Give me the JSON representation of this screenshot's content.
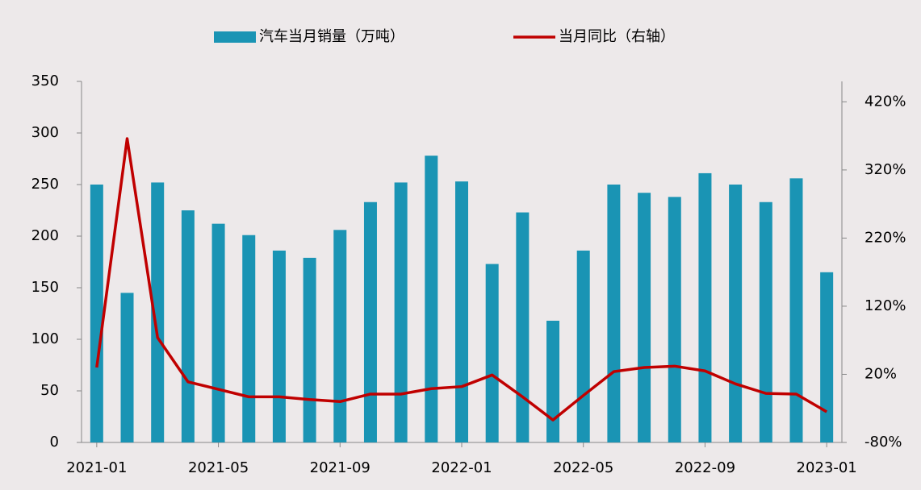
{
  "chart_data": {
    "type": "bar_line",
    "categories": [
      "2021-01",
      null,
      null,
      null,
      "2021-05",
      null,
      null,
      null,
      "2021-09",
      null,
      null,
      null,
      "2022-01",
      null,
      null,
      null,
      "2022-05",
      null,
      null,
      null,
      "2022-09",
      null,
      null,
      null,
      "2023-01"
    ],
    "series": [
      {
        "name": "汽车当月销量（万吨）",
        "type": "bar",
        "color": "#1a94b4",
        "values": [
          250,
          145,
          252,
          225,
          212,
          201,
          186,
          179,
          206,
          233,
          252,
          278,
          253,
          173,
          223,
          118,
          186,
          250,
          242,
          238,
          261,
          250,
          233,
          256,
          165
        ]
      },
      {
        "name": "当月同比（右轴）",
        "type": "line",
        "axis": "y2",
        "color": "#c00000",
        "values": [
          30,
          366,
          74,
          9,
          -2,
          -13,
          -13,
          -17,
          -20,
          -9,
          -9,
          -1,
          2,
          19,
          -13,
          -47,
          -11,
          24,
          30,
          32,
          25,
          6,
          -8,
          -9,
          -35
        ]
      }
    ],
    "ylim": [
      0,
      350
    ],
    "yticks": [
      0,
      50,
      100,
      150,
      200,
      250,
      300,
      350
    ],
    "y2lim": [
      -80,
      450
    ],
    "y2ticks": [
      {
        "value": -80,
        "label": "-80%"
      },
      {
        "value": 20,
        "label": "20%"
      },
      {
        "value": 120,
        "label": "120%"
      },
      {
        "value": 220,
        "label": "220%"
      },
      {
        "value": 320,
        "label": "320%"
      },
      {
        "value": 420,
        "label": "420%"
      }
    ]
  }
}
